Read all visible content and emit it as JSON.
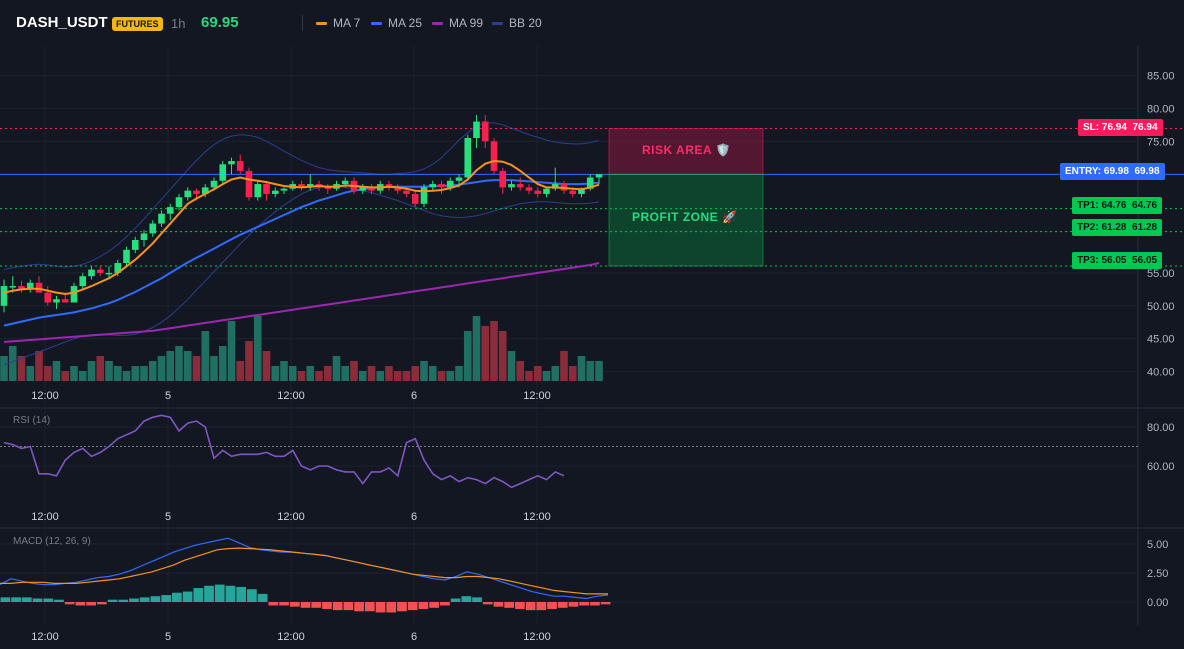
{
  "header": {
    "symbol": "DASH_USDT",
    "badge": "FUTURES",
    "timeframe": "1h",
    "last_price": "69.95",
    "indicators": [
      {
        "label": "MA 7",
        "color": "#f7931a"
      },
      {
        "label": "MA 25",
        "color": "#2f6bff"
      },
      {
        "label": "MA 99",
        "color": "#9c27b0"
      },
      {
        "label": "BB 20",
        "color": "#2a3f8f"
      }
    ]
  },
  "colors": {
    "up": "#26e07f",
    "down": "#f7204f",
    "up_volume": "#1f6f62",
    "down_volume": "#8a2c3a",
    "sl": "#ff1a5e",
    "entry": "#2f6bff",
    "tp": "#00c853",
    "rsi": "#7e57c2",
    "macd": "#2f6bff",
    "signal": "#f7931a",
    "hist_up": "#26a69a",
    "hist_down": "#ef5350"
  },
  "levels": {
    "sl": {
      "label": "SL: 76.94",
      "value": 76.94,
      "axis": "76.94"
    },
    "entry": {
      "label": "ENTRY: 69.98",
      "value": 69.98,
      "axis": "69.98"
    },
    "tp1": {
      "label": "TP1: 64.76",
      "value": 64.76,
      "axis": "64.76"
    },
    "tp2": {
      "label": "TP2: 61.28",
      "value": 61.28,
      "axis": "61.28"
    },
    "tp3": {
      "label": "TP3: 56.05",
      "value": 56.05,
      "axis": "56.05"
    }
  },
  "zones": {
    "risk_label": "RISK AREA 🛡️",
    "profit_label": "PROFIT ZONE 🚀"
  },
  "panes": {
    "rsi_title": "RSI (14)",
    "macd_title": "MACD (12, 26, 9)"
  },
  "chart_data": [
    {
      "type": "candlestick",
      "title": "DASH_USDT 1h",
      "x_ticks": [
        "12:00",
        "5",
        "12:00",
        "6",
        "12:00"
      ],
      "y_ticks": [
        "85.00",
        "80.00",
        "75.00",
        "55.00",
        "50.00",
        "45.00",
        "40.00"
      ],
      "ylim": [
        37,
        88
      ],
      "candles_ohlc": [
        [
          50,
          54,
          49,
          53
        ],
        [
          53,
          54.5,
          52,
          53
        ],
        [
          53,
          53.8,
          52,
          52.5
        ],
        [
          52.5,
          54,
          52,
          53.5
        ],
        [
          53.5,
          54.5,
          52,
          52
        ],
        [
          52,
          53,
          50,
          50.5
        ],
        [
          50.5,
          51.5,
          49.5,
          51
        ],
        [
          51,
          52,
          50.5,
          50.5
        ],
        [
          50.5,
          53.5,
          50.5,
          53
        ],
        [
          53,
          55,
          52.5,
          54.5
        ],
        [
          54.5,
          56,
          54,
          55.5
        ],
        [
          55.5,
          56,
          54.5,
          55
        ],
        [
          55,
          56,
          54,
          55
        ],
        [
          55,
          57,
          54.5,
          56.5
        ],
        [
          56.5,
          59,
          56,
          58.5
        ],
        [
          58.5,
          60.5,
          58,
          60
        ],
        [
          60,
          61.5,
          59,
          61
        ],
        [
          61,
          63,
          60.5,
          62.5
        ],
        [
          62.5,
          64.5,
          62,
          64
        ],
        [
          64,
          65.5,
          63,
          65
        ],
        [
          65,
          67,
          64.5,
          66.5
        ],
        [
          66.5,
          68,
          66,
          67.5
        ],
        [
          67.5,
          67.8,
          66,
          67
        ],
        [
          67,
          68.5,
          66.5,
          68
        ],
        [
          68,
          69.5,
          67.5,
          69
        ],
        [
          69,
          72,
          68.5,
          71.5
        ],
        [
          71.5,
          72.5,
          70,
          72
        ],
        [
          72,
          73,
          70,
          70.5
        ],
        [
          70.5,
          71,
          66,
          66.5
        ],
        [
          66.5,
          69,
          66,
          68.5
        ],
        [
          68.5,
          69,
          66,
          67
        ],
        [
          67,
          68,
          66.5,
          67.5
        ],
        [
          67.5,
          68,
          67,
          67.8
        ],
        [
          67.8,
          69,
          67.5,
          68.5
        ],
        [
          68.5,
          69,
          67.5,
          68
        ],
        [
          68,
          70,
          67.5,
          68.5
        ],
        [
          68.5,
          69,
          67.5,
          68
        ],
        [
          68,
          68.5,
          67,
          67.8
        ],
        [
          67.8,
          69,
          67.5,
          68.5
        ],
        [
          68.5,
          69.5,
          68,
          69
        ],
        [
          69,
          69.5,
          67,
          67.5
        ],
        [
          67.5,
          68.5,
          67,
          68
        ],
        [
          68,
          68.5,
          67,
          67.5
        ],
        [
          67.5,
          69,
          67,
          68.5
        ],
        [
          68.5,
          69,
          67.5,
          68
        ],
        [
          68,
          68.5,
          67,
          67.5
        ],
        [
          67.5,
          68,
          66.5,
          67
        ],
        [
          67,
          67.5,
          65,
          65.5
        ],
        [
          65.5,
          68.5,
          65,
          68
        ],
        [
          68,
          69,
          67.5,
          68.5
        ],
        [
          68.5,
          69,
          67,
          68
        ],
        [
          68,
          69.5,
          67.5,
          69
        ],
        [
          69,
          70,
          68,
          69.5
        ],
        [
          69.5,
          76,
          69,
          75.5
        ],
        [
          75.5,
          79,
          74,
          78
        ],
        [
          78,
          79,
          74,
          75
        ],
        [
          75,
          75.5,
          70,
          70.5
        ],
        [
          70.5,
          71,
          67,
          68
        ],
        [
          68,
          69,
          67.5,
          68.5
        ],
        [
          68.5,
          69.5,
          67.5,
          68
        ],
        [
          68,
          68.5,
          67,
          67.5
        ],
        [
          67.5,
          68,
          66.5,
          67
        ],
        [
          67,
          68,
          66.5,
          67.8
        ],
        [
          67.8,
          71,
          67.5,
          68.5
        ],
        [
          68.5,
          69,
          67,
          67.5
        ],
        [
          67.5,
          68,
          66.5,
          67
        ],
        [
          67,
          68,
          66.5,
          67.8
        ],
        [
          67.8,
          70,
          67.5,
          69.5
        ],
        [
          69.5,
          70,
          68.5,
          70
        ]
      ],
      "volume_rel": [
        0.5,
        0.7,
        0.5,
        0.3,
        0.6,
        0.3,
        0.4,
        0.2,
        0.3,
        0.2,
        0.4,
        0.5,
        0.4,
        0.3,
        0.2,
        0.3,
        0.3,
        0.4,
        0.5,
        0.6,
        0.7,
        0.6,
        0.5,
        1.0,
        0.5,
        0.7,
        1.2,
        0.4,
        0.8,
        1.3,
        0.6,
        0.3,
        0.4,
        0.3,
        0.2,
        0.3,
        0.2,
        0.3,
        0.5,
        0.3,
        0.4,
        0.2,
        0.3,
        0.2,
        0.3,
        0.2,
        0.2,
        0.3,
        0.4,
        0.3,
        0.2,
        0.2,
        0.3,
        1.0,
        1.3,
        1.1,
        1.2,
        1.0,
        0.6,
        0.4,
        0.2,
        0.3,
        0.2,
        0.3,
        0.6,
        0.3,
        0.5,
        0.4,
        0.4
      ],
      "series": [
        {
          "name": "MA 7",
          "values": [
            52,
            52.3,
            52.5,
            52.6,
            52.6,
            52.3,
            52,
            51.8,
            52,
            52.5,
            53,
            53.6,
            54.2,
            55,
            56,
            57,
            58.2,
            59.5,
            61,
            62.5,
            64,
            65.5,
            66.3,
            67,
            67.7,
            68.5,
            69.2,
            69.5,
            69.2,
            69,
            68.8,
            68.5,
            68.2,
            68.1,
            68,
            68.1,
            68.2,
            68.1,
            68.1,
            68.3,
            68.2,
            68.1,
            68,
            68,
            68.1,
            68,
            67.8,
            67.5,
            67.4,
            67.5,
            67.6,
            67.9,
            68.3,
            69.2,
            70.6,
            71.6,
            72,
            71.9,
            71.4,
            70.5,
            69.5,
            68.5,
            68,
            68,
            67.9,
            67.8,
            67.7,
            68,
            68.4
          ]
        },
        {
          "name": "MA 25",
          "values": [
            47,
            47.3,
            47.6,
            47.9,
            48.2,
            48.4,
            48.6,
            48.8,
            49,
            49.3,
            49.6,
            50,
            50.4,
            50.9,
            51.5,
            52.1,
            52.8,
            53.5,
            54.2,
            55,
            55.8,
            56.6,
            57.3,
            58,
            58.7,
            59.4,
            60.1,
            60.8,
            61.4,
            62,
            62.6,
            63.2,
            63.8,
            64.4,
            65,
            65.5,
            66,
            66.4,
            66.8,
            67.2,
            67.5,
            67.7,
            67.9,
            68,
            68.1,
            68.1,
            68.1,
            68.1,
            68.1,
            68.2,
            68.2,
            68.3,
            68.4,
            68.6,
            68.8,
            69,
            69.1,
            69.1,
            69.1,
            69,
            68.9,
            68.8,
            68.7,
            68.6,
            68.5,
            68.5,
            68.5,
            68.6,
            68.7
          ]
        },
        {
          "name": "MA 99",
          "values": [
            44.5,
            44.6,
            44.7,
            44.8,
            44.9,
            45,
            45.1,
            45.2,
            45.3,
            45.4,
            45.5,
            45.6,
            45.7,
            45.8,
            45.9,
            46,
            46.1,
            46.2,
            46.4,
            46.6,
            46.8,
            47,
            47.2,
            47.4,
            47.6,
            47.8,
            48,
            48.2,
            48.4,
            48.6,
            48.8,
            49,
            49.2,
            49.4,
            49.6,
            49.8,
            50,
            50.2,
            50.4,
            50.6,
            50.8,
            51,
            51.2,
            51.4,
            51.6,
            51.8,
            52,
            52.2,
            52.4,
            52.6,
            52.8,
            53,
            53.2,
            53.4,
            53.6,
            53.8,
            54,
            54.2,
            54.4,
            54.6,
            54.8,
            55,
            55.2,
            55.4,
            55.6,
            55.8,
            56,
            56.2,
            56.5
          ]
        },
        {
          "name": "BB 20 upper",
          "values": [
            55.5,
            55.8,
            56,
            56.2,
            56.3,
            56.2,
            56,
            55.9,
            56,
            56.3,
            56.8,
            57.5,
            58.3,
            59.3,
            60.5,
            61.8,
            63.2,
            64.7,
            66.2,
            67.7,
            69.2,
            70.7,
            72.1,
            73.4,
            74.5,
            75.3,
            75.8,
            76,
            75.9,
            75.6,
            75,
            74.3,
            73.5,
            72.8,
            72.1,
            71.5,
            71,
            70.7,
            70.5,
            70.4,
            70.3,
            70.2,
            70.1,
            70,
            70,
            70.1,
            70.2,
            70.4,
            70.8,
            71.5,
            72.5,
            73.8,
            75.2,
            76.3,
            77.3,
            77.8,
            77.8,
            77.5,
            77,
            76.5,
            76,
            75.6,
            75.2,
            74.9,
            74.7,
            74.6,
            74.6,
            74.8,
            75.1
          ]
        },
        {
          "name": "BB 20 lower",
          "values": [
            41,
            41.5,
            42,
            42.5,
            43,
            43.5,
            44,
            44.5,
            45,
            45.4,
            45.6,
            45.7,
            45.6,
            45.5,
            45.5,
            45.7,
            46.1,
            46.7,
            47.5,
            48.5,
            49.7,
            51,
            52.4,
            53.8,
            55.2,
            56.6,
            58,
            59.4,
            60.7,
            62,
            63.2,
            64.3,
            65.3,
            66.2,
            67,
            67.6,
            68,
            68.2,
            68.2,
            68,
            67.8,
            67.5,
            67.2,
            66.8,
            66.4,
            66,
            65.5,
            65,
            64.5,
            64,
            63.7,
            63.5,
            63.4,
            63.5,
            63.7,
            64,
            64.4,
            64.8,
            65.2,
            65.5,
            65.7,
            65.8,
            65.8,
            65.7,
            65.6,
            65.5,
            65.5,
            65.6,
            65.8
          ]
        }
      ]
    },
    {
      "type": "line",
      "title": "RSI (14)",
      "x_ticks": [
        "12:00",
        "5",
        "12:00",
        "6",
        "12:00"
      ],
      "y_ticks": [
        "80.00",
        "60.00"
      ],
      "ylim": [
        41,
        91
      ],
      "reference_line": 70,
      "series": [
        {
          "name": "RSI",
          "values": [
            72,
            71,
            69,
            70,
            56,
            56,
            55,
            63,
            67,
            69,
            65,
            67,
            70,
            74,
            76,
            78,
            83,
            85,
            86,
            85,
            78,
            82,
            83,
            80,
            64,
            68,
            65,
            66,
            66,
            66,
            67,
            65,
            65,
            68,
            60,
            58,
            60,
            60,
            58,
            57,
            57,
            51,
            57,
            57,
            59,
            55,
            72,
            74,
            63,
            56,
            53,
            55,
            52,
            54,
            53,
            51,
            54,
            52,
            49,
            51,
            53,
            55,
            53,
            57,
            55
          ]
        }
      ]
    },
    {
      "type": "line",
      "title": "MACD (12, 26, 9)",
      "x_ticks": [
        "12:00",
        "5",
        "12:00",
        "6",
        "12:00"
      ],
      "y_ticks": [
        "5.00",
        "2.50",
        "0.00"
      ],
      "ylim": [
        -1.8,
        6.6
      ],
      "series": [
        {
          "name": "MACD",
          "values": [
            1.5,
            2.0,
            1.8,
            1.6,
            1.5,
            1.5,
            1.6,
            1.7,
            1.9,
            2.1,
            2.2,
            2.4,
            2.7,
            3.1,
            3.5,
            3.9,
            4.3,
            4.6,
            4.9,
            5.1,
            5.3,
            5.5,
            5.1,
            4.7,
            4.5,
            4.4,
            4.3,
            4.3,
            4.2,
            4.1,
            4.0,
            3.8,
            3.6,
            3.4,
            3.2,
            3.0,
            2.8,
            2.6,
            2.4,
            2.2,
            2.0,
            1.9,
            2.2,
            2.6,
            2.4,
            2.1,
            1.8,
            1.5,
            1.2,
            0.9,
            0.7,
            0.5,
            0.5,
            0.4,
            0.3,
            0.5,
            0.6
          ]
        },
        {
          "name": "Signal",
          "values": [
            1.6,
            1.6,
            1.7,
            1.7,
            1.7,
            1.6,
            1.6,
            1.6,
            1.7,
            1.8,
            1.9,
            2.0,
            2.2,
            2.4,
            2.6,
            2.9,
            3.2,
            3.6,
            3.9,
            4.2,
            4.5,
            4.6,
            4.65,
            4.6,
            4.55,
            4.5,
            4.4,
            4.3,
            4.2,
            4.1,
            4.0,
            3.8,
            3.6,
            3.4,
            3.2,
            3.0,
            2.8,
            2.6,
            2.4,
            2.3,
            2.2,
            2.1,
            2.1,
            2.2,
            2.2,
            2.1,
            2.0,
            1.8,
            1.6,
            1.4,
            1.2,
            1.0,
            0.9,
            0.8,
            0.7,
            0.7,
            0.7
          ]
        },
        {
          "name": "Histogram",
          "values": [
            0.4,
            0.4,
            0.4,
            0.3,
            0.3,
            0.2,
            -0.2,
            -0.3,
            -0.3,
            -0.2,
            0.2,
            0.2,
            0.3,
            0.4,
            0.5,
            0.6,
            0.8,
            0.9,
            1.2,
            1.4,
            1.5,
            1.4,
            1.3,
            1.1,
            0.7,
            -0.3,
            -0.3,
            -0.4,
            -0.5,
            -0.5,
            -0.6,
            -0.7,
            -0.7,
            -0.8,
            -0.8,
            -0.9,
            -0.9,
            -0.8,
            -0.7,
            -0.6,
            -0.5,
            -0.3,
            0.3,
            0.5,
            0.4,
            -0.2,
            -0.4,
            -0.5,
            -0.6,
            -0.7,
            -0.7,
            -0.6,
            -0.5,
            -0.4,
            -0.3,
            -0.3,
            -0.2
          ]
        }
      ]
    }
  ]
}
